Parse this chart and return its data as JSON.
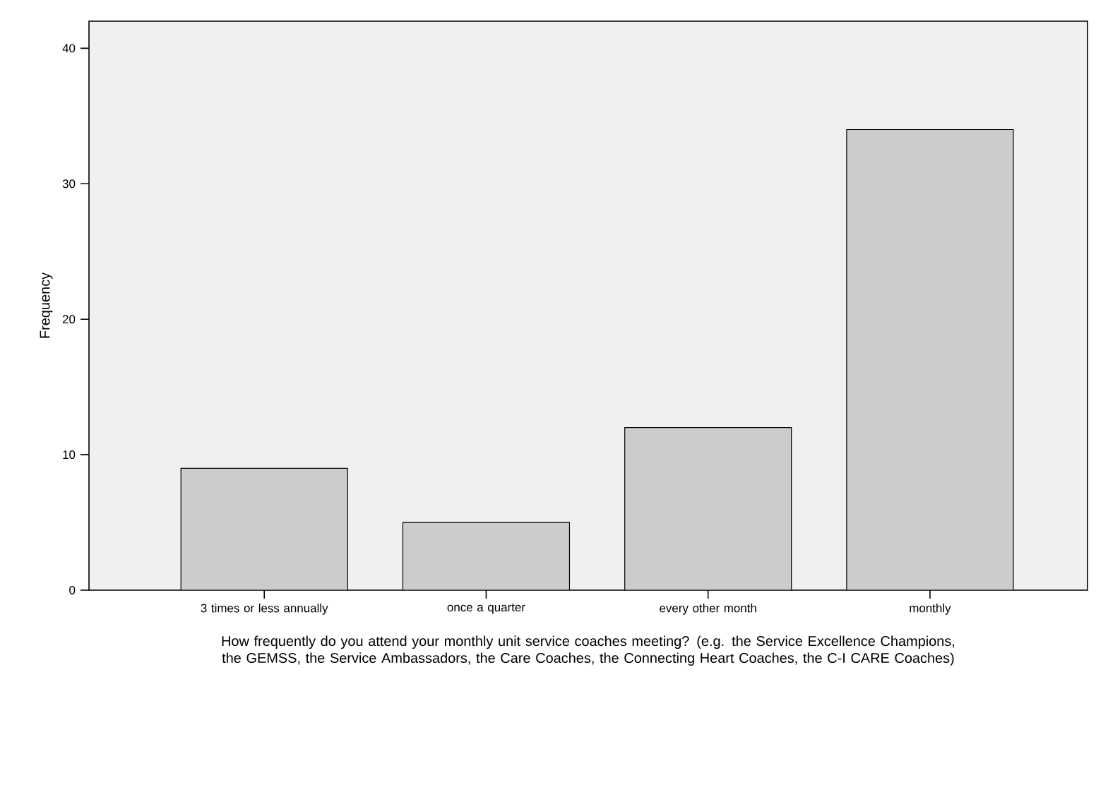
{
  "chart_data": {
    "type": "bar",
    "xlabel": "How frequently do you attend your monthly unit service coaches meeting? (e.g. the Service Excellence Champions, the GEMSS, the Service Ambassadors, the Care Coaches, the Connecting Heart Coaches, the C-I CARE Coaches)",
    "ylabel": "Frequency",
    "categories": [
      "3 times or less annually",
      "once a quarter",
      "every other month",
      "monthly"
    ],
    "values": [
      9,
      5,
      12,
      34
    ],
    "color": "#cccccc",
    "ylim": [
      0,
      42
    ],
    "yticks": [
      0,
      10,
      20,
      30,
      40
    ],
    "grid": false
  }
}
